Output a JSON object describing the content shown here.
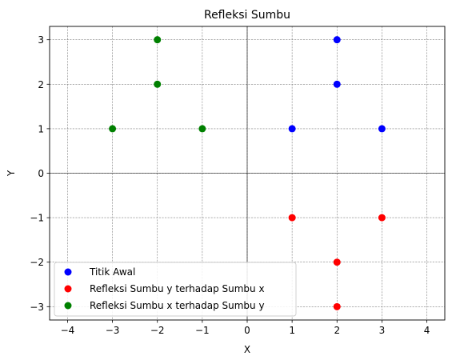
{
  "chart_data": {
    "type": "scatter",
    "title": "Refleksi Sumbu",
    "xlabel": "X",
    "ylabel": "Y",
    "xlim": [
      -4.4,
      4.4
    ],
    "ylim": [
      -3.3,
      3.3
    ],
    "xticks": [
      -4,
      -3,
      -2,
      -1,
      0,
      1,
      2,
      3,
      4
    ],
    "yticks": [
      -3,
      -2,
      -1,
      0,
      1,
      2,
      3
    ],
    "grid": true,
    "zero_axes": true,
    "legend_position": "lower-left",
    "series": [
      {
        "name": "Titik Awal",
        "color": "#0000ff",
        "points": [
          [
            1,
            1
          ],
          [
            3,
            1
          ],
          [
            2,
            2
          ],
          [
            2,
            3
          ]
        ]
      },
      {
        "name": "Refleksi Sumbu y terhadap Sumbu x",
        "color": "#ff0000",
        "points": [
          [
            1,
            -1
          ],
          [
            3,
            -1
          ],
          [
            2,
            -2
          ],
          [
            2,
            -3
          ]
        ]
      },
      {
        "name": "Refleksi Sumbu x terhadap Sumbu y",
        "color": "#008000",
        "points": [
          [
            -1,
            1
          ],
          [
            -3,
            1
          ],
          [
            -2,
            2
          ],
          [
            -2,
            3
          ]
        ]
      }
    ]
  }
}
